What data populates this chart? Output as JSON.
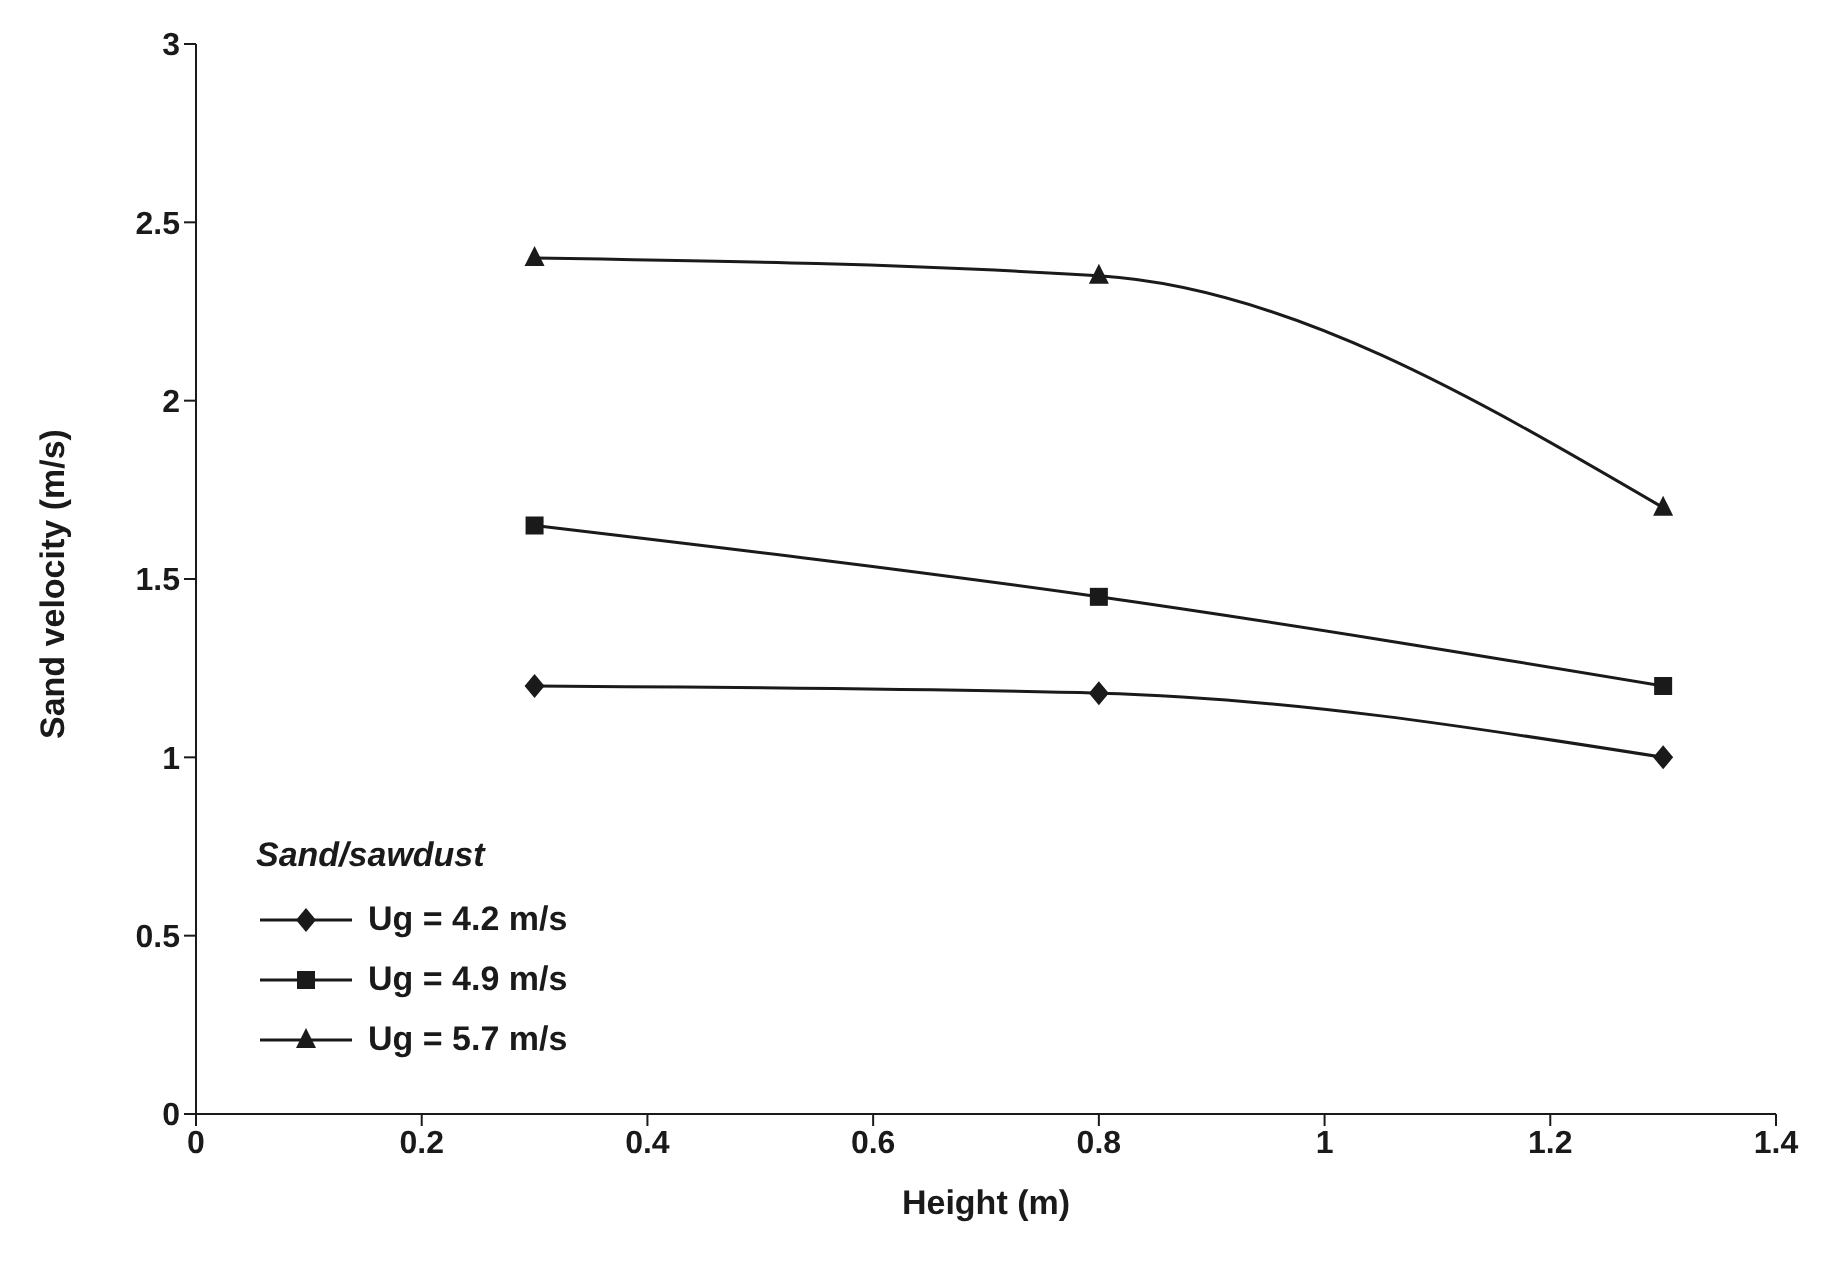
{
  "chart_data": {
    "type": "line",
    "xlabel": "Height (m)",
    "ylabel": "Sand velocity (m/s)",
    "legend_title": "Sand/sawdust",
    "x": [
      0.3,
      0.8,
      1.3
    ],
    "series": [
      {
        "name": "Ug = 4.2 m/s",
        "color": "#1a1a1a",
        "marker": "diamond",
        "values": [
          1.2,
          1.18,
          1.0
        ]
      },
      {
        "name": "Ug = 4.9 m/s",
        "color": "#1a1a1a",
        "marker": "square",
        "values": [
          1.65,
          1.45,
          1.2
        ]
      },
      {
        "name": "Ug = 5.7 m/s",
        "color": "#1a1a1a",
        "marker": "triangle",
        "values": [
          2.4,
          2.35,
          1.7
        ]
      }
    ],
    "xlim": [
      0,
      1.4
    ],
    "xticks": [
      0,
      0.2,
      0.4,
      0.6,
      0.8,
      1,
      1.2,
      1.4
    ],
    "ylim": [
      0,
      3
    ],
    "yticks": [
      0,
      0.5,
      1,
      1.5,
      2,
      2.5,
      3
    ],
    "grid": false,
    "legend": "bottom left",
    "line_style": "solid"
  }
}
